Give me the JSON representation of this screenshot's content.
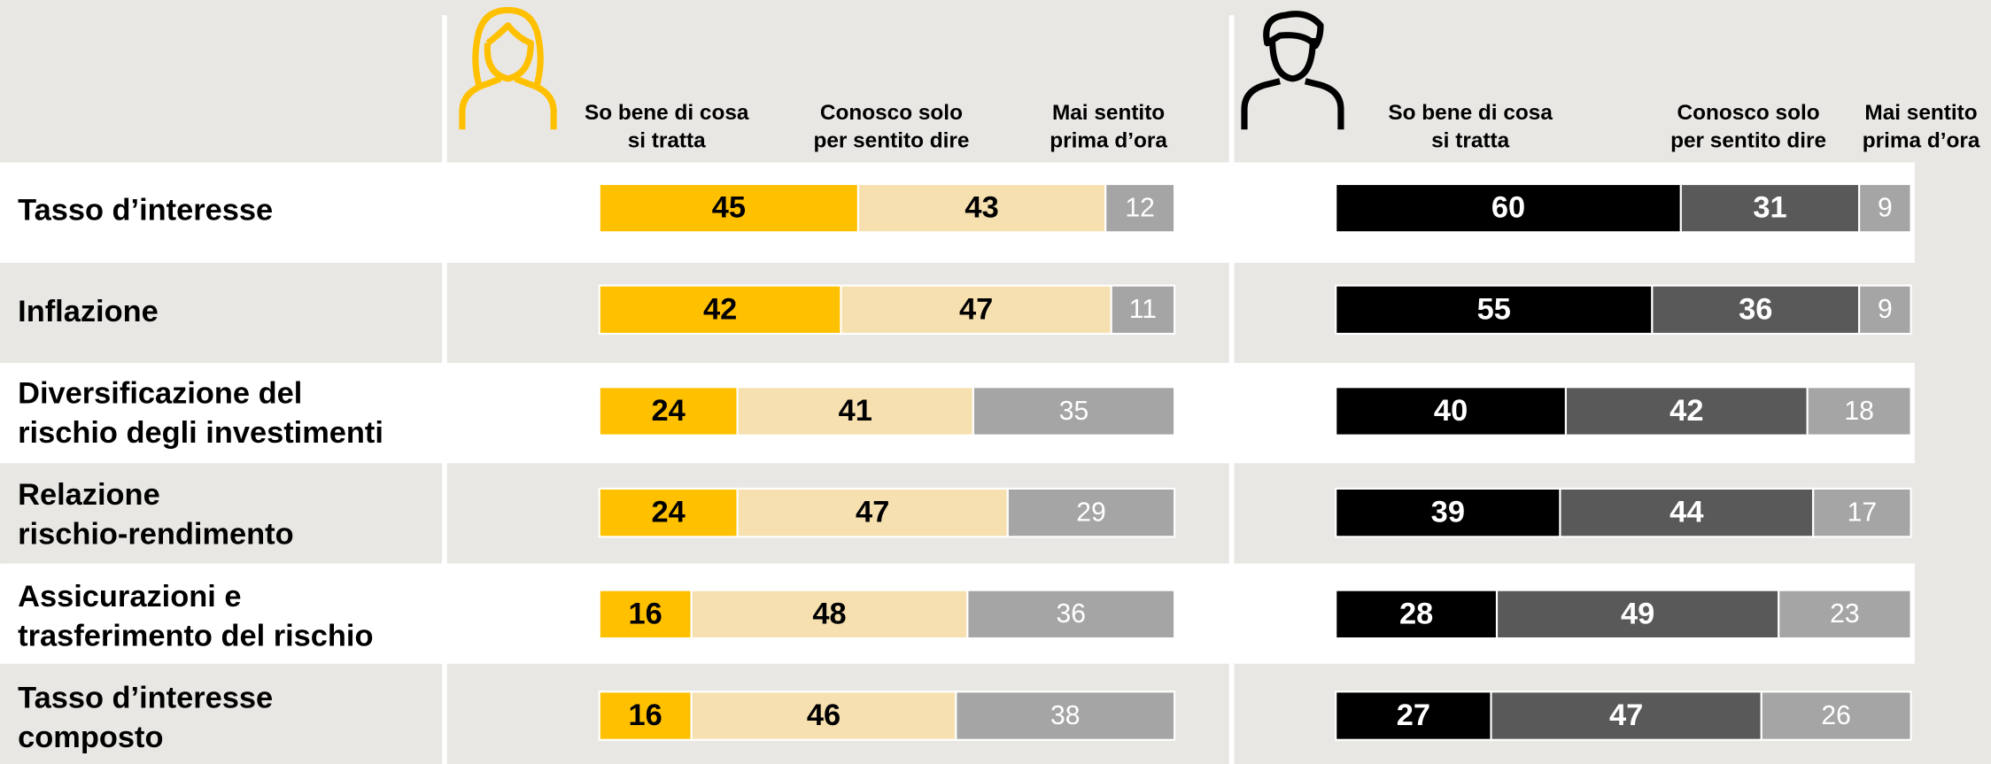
{
  "chart_data": {
    "type": "bar",
    "stacked": true,
    "orientation": "horizontal",
    "xlim": [
      0,
      100
    ],
    "categories": [
      "Tasso d’interesse",
      "Inflazione",
      "Diversificazione del\nrischio degli investimenti",
      "Relazione\nrischio-rendimento",
      "Assicurazioni e\ntrasferimento del rischio",
      "Tasso d’interesse\ncomposto"
    ],
    "panels": [
      {
        "icon_color": "#FFC000",
        "series": [
          {
            "name": "So bene di cosa\nsi tratta",
            "color": "#FFC000",
            "text_color": "#000000",
            "values": [
              45,
              42,
              24,
              24,
              16,
              16
            ]
          },
          {
            "name": "Conosco solo\nper sentito dire",
            "color": "#F6E0B0",
            "text_color": "#000000",
            "values": [
              43,
              47,
              41,
              47,
              48,
              46
            ]
          },
          {
            "name": "Mai sentito\nprima d’ora",
            "color": "#A5A5A5",
            "text_color": "#FFFFFF",
            "values": [
              12,
              11,
              35,
              29,
              36,
              38
            ]
          }
        ]
      },
      {
        "icon_color": "#000000",
        "series": [
          {
            "name": "So bene di cosa\nsi tratta",
            "color": "#000000",
            "text_color": "#FFFFFF",
            "values": [
              60,
              55,
              40,
              39,
              28,
              27
            ]
          },
          {
            "name": "Conosco solo\nper sentito dire",
            "color": "#595959",
            "text_color": "#FFFFFF",
            "values": [
              31,
              36,
              42,
              44,
              49,
              47
            ]
          },
          {
            "name": "Mai sentito\nprima d’ora",
            "color": "#A5A5A5",
            "text_color": "#FFFFFF",
            "values": [
              9,
              9,
              18,
              17,
              23,
              26
            ]
          }
        ]
      }
    ]
  }
}
